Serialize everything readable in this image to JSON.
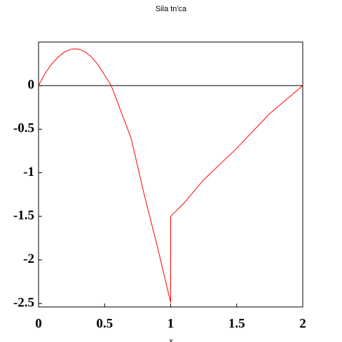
{
  "chart_data": {
    "type": "line",
    "title": "Sila tn'ca",
    "x_label": "x",
    "series": [
      {
        "color": "#ff0000",
        "x": [
          0,
          0.05,
          0.1,
          0.15,
          0.2,
          0.25,
          0.3,
          0.35,
          0.4,
          0.45,
          0.5,
          0.55,
          0.6,
          0.7,
          0.8,
          0.9,
          1,
          1,
          1.1,
          1.25,
          1.5,
          1.75,
          2
        ],
        "values": [
          0,
          0.14,
          0.25,
          0.33,
          0.39,
          0.42,
          0.42,
          0.39,
          0.33,
          0.24,
          0.12,
          0,
          -0.2,
          -0.6,
          -1.25,
          -1.85,
          -2.49,
          -1.5,
          -1.35,
          -1.08,
          -0.72,
          -0.32,
          0
        ]
      }
    ],
    "xlim": [
      0,
      2
    ],
    "ylim": [
      -2.54,
      0.5
    ],
    "xticks": [
      0,
      0.5,
      1,
      1.5,
      2
    ],
    "yticks": [
      0,
      -0.5,
      -1,
      -1.5,
      -2,
      -2.5
    ]
  }
}
